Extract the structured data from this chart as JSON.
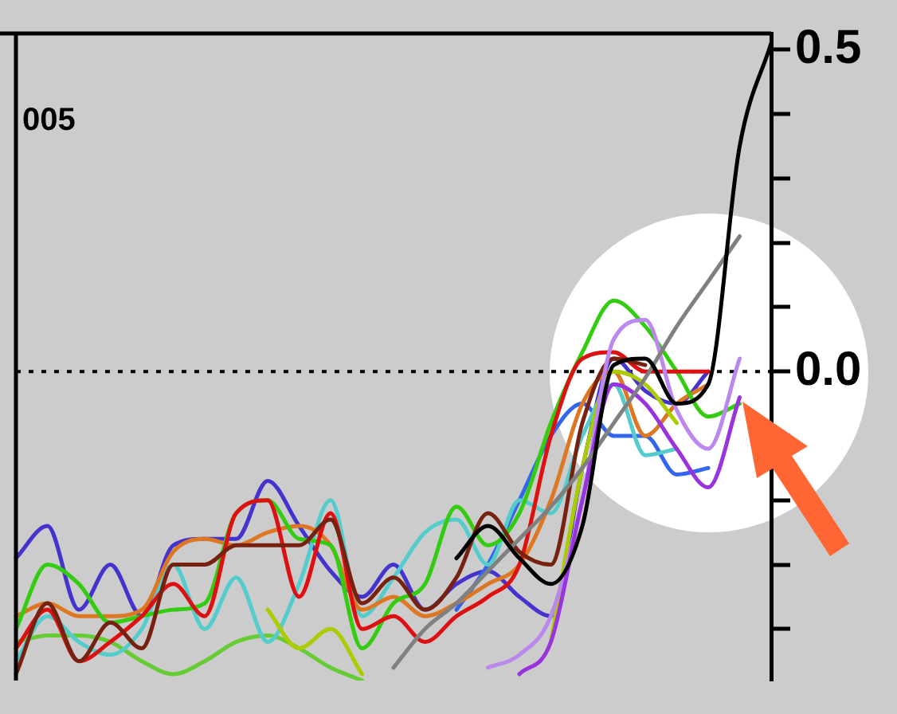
{
  "chart_data": {
    "type": "line",
    "annotations": [
      "005"
    ],
    "categories": [
      null,
      null,
      null,
      null,
      null,
      null,
      null,
      null,
      null,
      null,
      null,
      null,
      null,
      null,
      null,
      null,
      null,
      null,
      null,
      null,
      null,
      null,
      null,
      null,
      null
    ],
    "ylim": [
      -0.48,
      0.525
    ],
    "yticks": [
      {
        "value": 0.5,
        "label": "0.5"
      },
      {
        "value": 0.4,
        "label": null
      },
      {
        "value": 0.3,
        "label": null
      },
      {
        "value": 0.2,
        "label": null
      },
      {
        "value": 0.1,
        "label": null
      },
      {
        "value": 0,
        "label": "0.0"
      },
      {
        "value": -0.1,
        "label": null
      },
      {
        "value": -0.2,
        "label": null
      },
      {
        "value": -0.3,
        "label": null
      },
      {
        "value": -0.4,
        "label": null
      }
    ],
    "marker": "none",
    "line_style": "solid",
    "ref_lines": [
      {
        "axis": "y",
        "value": 0,
        "line_style": "dotted",
        "color": "#000000"
      }
    ],
    "series": [
      {
        "color": "#66cc33",
        "values": [
          -0.42,
          -0.41,
          -0.41,
          -0.42,
          -0.45,
          -0.47,
          -0.45,
          -0.42,
          -0.41,
          -0.43,
          -0.46,
          -0.48,
          null,
          null,
          null,
          null,
          null,
          null,
          null,
          null,
          null,
          null,
          null,
          null,
          null
        ]
      },
      {
        "color": "#4433cc",
        "values": [
          -0.29,
          -0.24,
          -0.37,
          -0.3,
          -0.38,
          -0.27,
          -0.26,
          -0.26,
          -0.17,
          -0.24,
          -0.31,
          -0.35,
          -0.3,
          -0.37,
          -0.33,
          -0.31,
          -0.35,
          -0.38,
          -0.15,
          0.02,
          -0.03,
          -0.05,
          0.0,
          null,
          null
        ]
      },
      {
        "color": "#3366ee",
        "values": [
          null,
          null,
          null,
          null,
          null,
          null,
          null,
          null,
          null,
          null,
          null,
          null,
          null,
          null,
          -0.37,
          -0.3,
          -0.2,
          -0.1,
          -0.05,
          -0.1,
          -0.1,
          -0.16,
          -0.15,
          null,
          null
        ]
      },
      {
        "color": "#55cccc",
        "values": [
          -0.45,
          -0.38,
          -0.42,
          -0.44,
          -0.4,
          -0.3,
          -0.4,
          -0.32,
          -0.42,
          -0.33,
          -0.2,
          -0.38,
          -0.32,
          -0.25,
          -0.23,
          -0.3,
          -0.2,
          -0.22,
          -0.1,
          -0.02,
          -0.13,
          -0.12,
          null,
          null,
          null
        ]
      },
      {
        "color": "#dd7722",
        "values": [
          -0.38,
          -0.36,
          -0.38,
          -0.38,
          -0.37,
          -0.28,
          -0.26,
          -0.27,
          -0.25,
          -0.24,
          -0.27,
          -0.37,
          -0.35,
          -0.38,
          -0.36,
          -0.33,
          -0.3,
          -0.2,
          -0.05,
          0.0,
          -0.1,
          -0.05,
          -0.02,
          null,
          null
        ]
      },
      {
        "color": "#aacc00",
        "values": [
          null,
          null,
          null,
          null,
          null,
          null,
          null,
          null,
          -0.37,
          -0.43,
          -0.4,
          -0.47,
          null,
          null,
          null,
          null,
          null,
          -0.42,
          -0.15,
          0.0,
          -0.02,
          -0.08,
          null,
          null,
          null
        ]
      },
      {
        "color": "#33cc11",
        "values": [
          -0.4,
          -0.3,
          -0.33,
          -0.39,
          -0.38,
          -0.37,
          -0.36,
          -0.22,
          -0.2,
          -0.26,
          -0.27,
          -0.43,
          -0.36,
          -0.33,
          -0.21,
          -0.27,
          -0.22,
          -0.08,
          0.03,
          0.11,
          0.07,
          0.0,
          -0.07,
          -0.05,
          null
        ]
      },
      {
        "color": "#dd1111",
        "values": [
          -0.43,
          -0.37,
          -0.45,
          -0.42,
          -0.38,
          -0.33,
          -0.38,
          -0.22,
          -0.2,
          -0.35,
          -0.22,
          -0.4,
          -0.38,
          -0.42,
          -0.38,
          -0.35,
          -0.3,
          -0.1,
          0.02,
          0.03,
          0.0,
          0.0,
          0.0,
          null,
          null
        ]
      },
      {
        "color": "#772211",
        "values": [
          -0.47,
          -0.36,
          -0.45,
          -0.39,
          -0.43,
          -0.3,
          -0.3,
          -0.27,
          -0.27,
          -0.27,
          -0.23,
          -0.36,
          -0.32,
          -0.37,
          -0.32,
          -0.22,
          -0.28,
          -0.3,
          -0.08,
          0.02,
          0.01,
          null,
          null,
          null,
          null
        ]
      },
      {
        "color": "#bb88ee",
        "values": [
          null,
          null,
          null,
          null,
          null,
          null,
          null,
          null,
          null,
          null,
          null,
          null,
          null,
          null,
          null,
          -0.46,
          -0.44,
          -0.38,
          -0.2,
          0.05,
          0.08,
          -0.06,
          -0.12,
          0.02,
          null
        ]
      },
      {
        "color": "#9933dd",
        "values": [
          null,
          null,
          null,
          null,
          null,
          null,
          null,
          null,
          null,
          null,
          null,
          null,
          null,
          null,
          null,
          null,
          -0.47,
          -0.42,
          -0.2,
          -0.02,
          -0.05,
          -0.12,
          -0.18,
          -0.04,
          null
        ]
      },
      {
        "color": "#808080",
        "values": [
          null,
          null,
          null,
          null,
          null,
          null,
          null,
          null,
          null,
          null,
          null,
          null,
          -0.46,
          -0.4,
          -0.36,
          -0.31,
          -0.26,
          -0.21,
          -0.15,
          -0.08,
          -0.01,
          0.07,
          0.14,
          0.21,
          null
        ]
      },
      {
        "color": "#000000",
        "values": [
          null,
          null,
          null,
          null,
          null,
          null,
          null,
          null,
          null,
          null,
          null,
          null,
          null,
          null,
          -0.29,
          -0.24,
          -0.29,
          -0.33,
          -0.24,
          0.01,
          0.02,
          -0.05,
          -0.02,
          0.35,
          0.51
        ]
      }
    ]
  }
}
